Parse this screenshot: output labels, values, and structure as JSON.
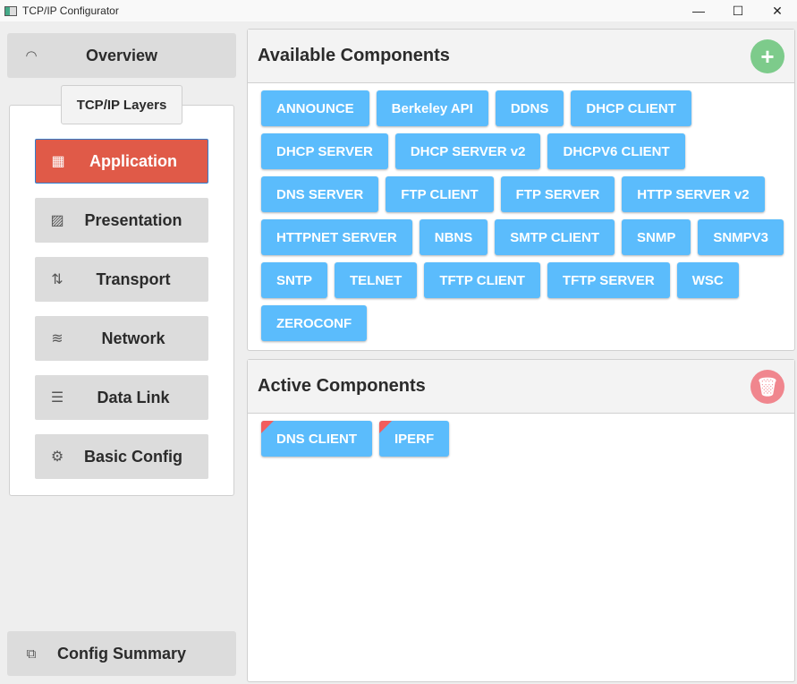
{
  "window": {
    "title": "TCP/IP Configurator",
    "controls": [
      "—",
      "☐",
      "✕"
    ]
  },
  "sidebar": {
    "overview": "Overview",
    "group_title": "TCP/IP Layers",
    "layers": [
      {
        "label": "Application",
        "icon": "grid-icon",
        "active": true
      },
      {
        "label": "Presentation",
        "icon": "image-icon"
      },
      {
        "label": "Transport",
        "icon": "arrows-up-down-icon"
      },
      {
        "label": "Network",
        "icon": "wifi-icon"
      },
      {
        "label": "Data Link",
        "icon": "server-icon"
      },
      {
        "label": "Basic Config",
        "icon": "gear-icon"
      }
    ],
    "config_summary": "Config Summary"
  },
  "available": {
    "title": "Available Components",
    "add_icon": "plus-icon",
    "add_color": "#7dcb8b",
    "items": [
      "ANNOUNCE",
      "Berkeley API",
      "DDNS",
      "DHCP CLIENT",
      "DHCP SERVER",
      "DHCP SERVER v2",
      "DHCPV6 CLIENT",
      "DNS SERVER",
      "FTP CLIENT",
      "FTP SERVER",
      "HTTP SERVER v2",
      "HTTPNET SERVER",
      "NBNS",
      "SMTP CLIENT",
      "SNMP",
      "SNMPV3",
      "SNTP",
      "TELNET",
      "TFTP CLIENT",
      "TFTP SERVER",
      "WSC",
      "ZEROCONF"
    ]
  },
  "active": {
    "title": "Active Components",
    "delete_icon": "trash-icon",
    "delete_color": "#f0868e",
    "items": [
      "DNS CLIENT",
      "IPERF"
    ]
  },
  "colors": {
    "chip": "#5bbcfc",
    "active_layer": "#e05a48"
  }
}
